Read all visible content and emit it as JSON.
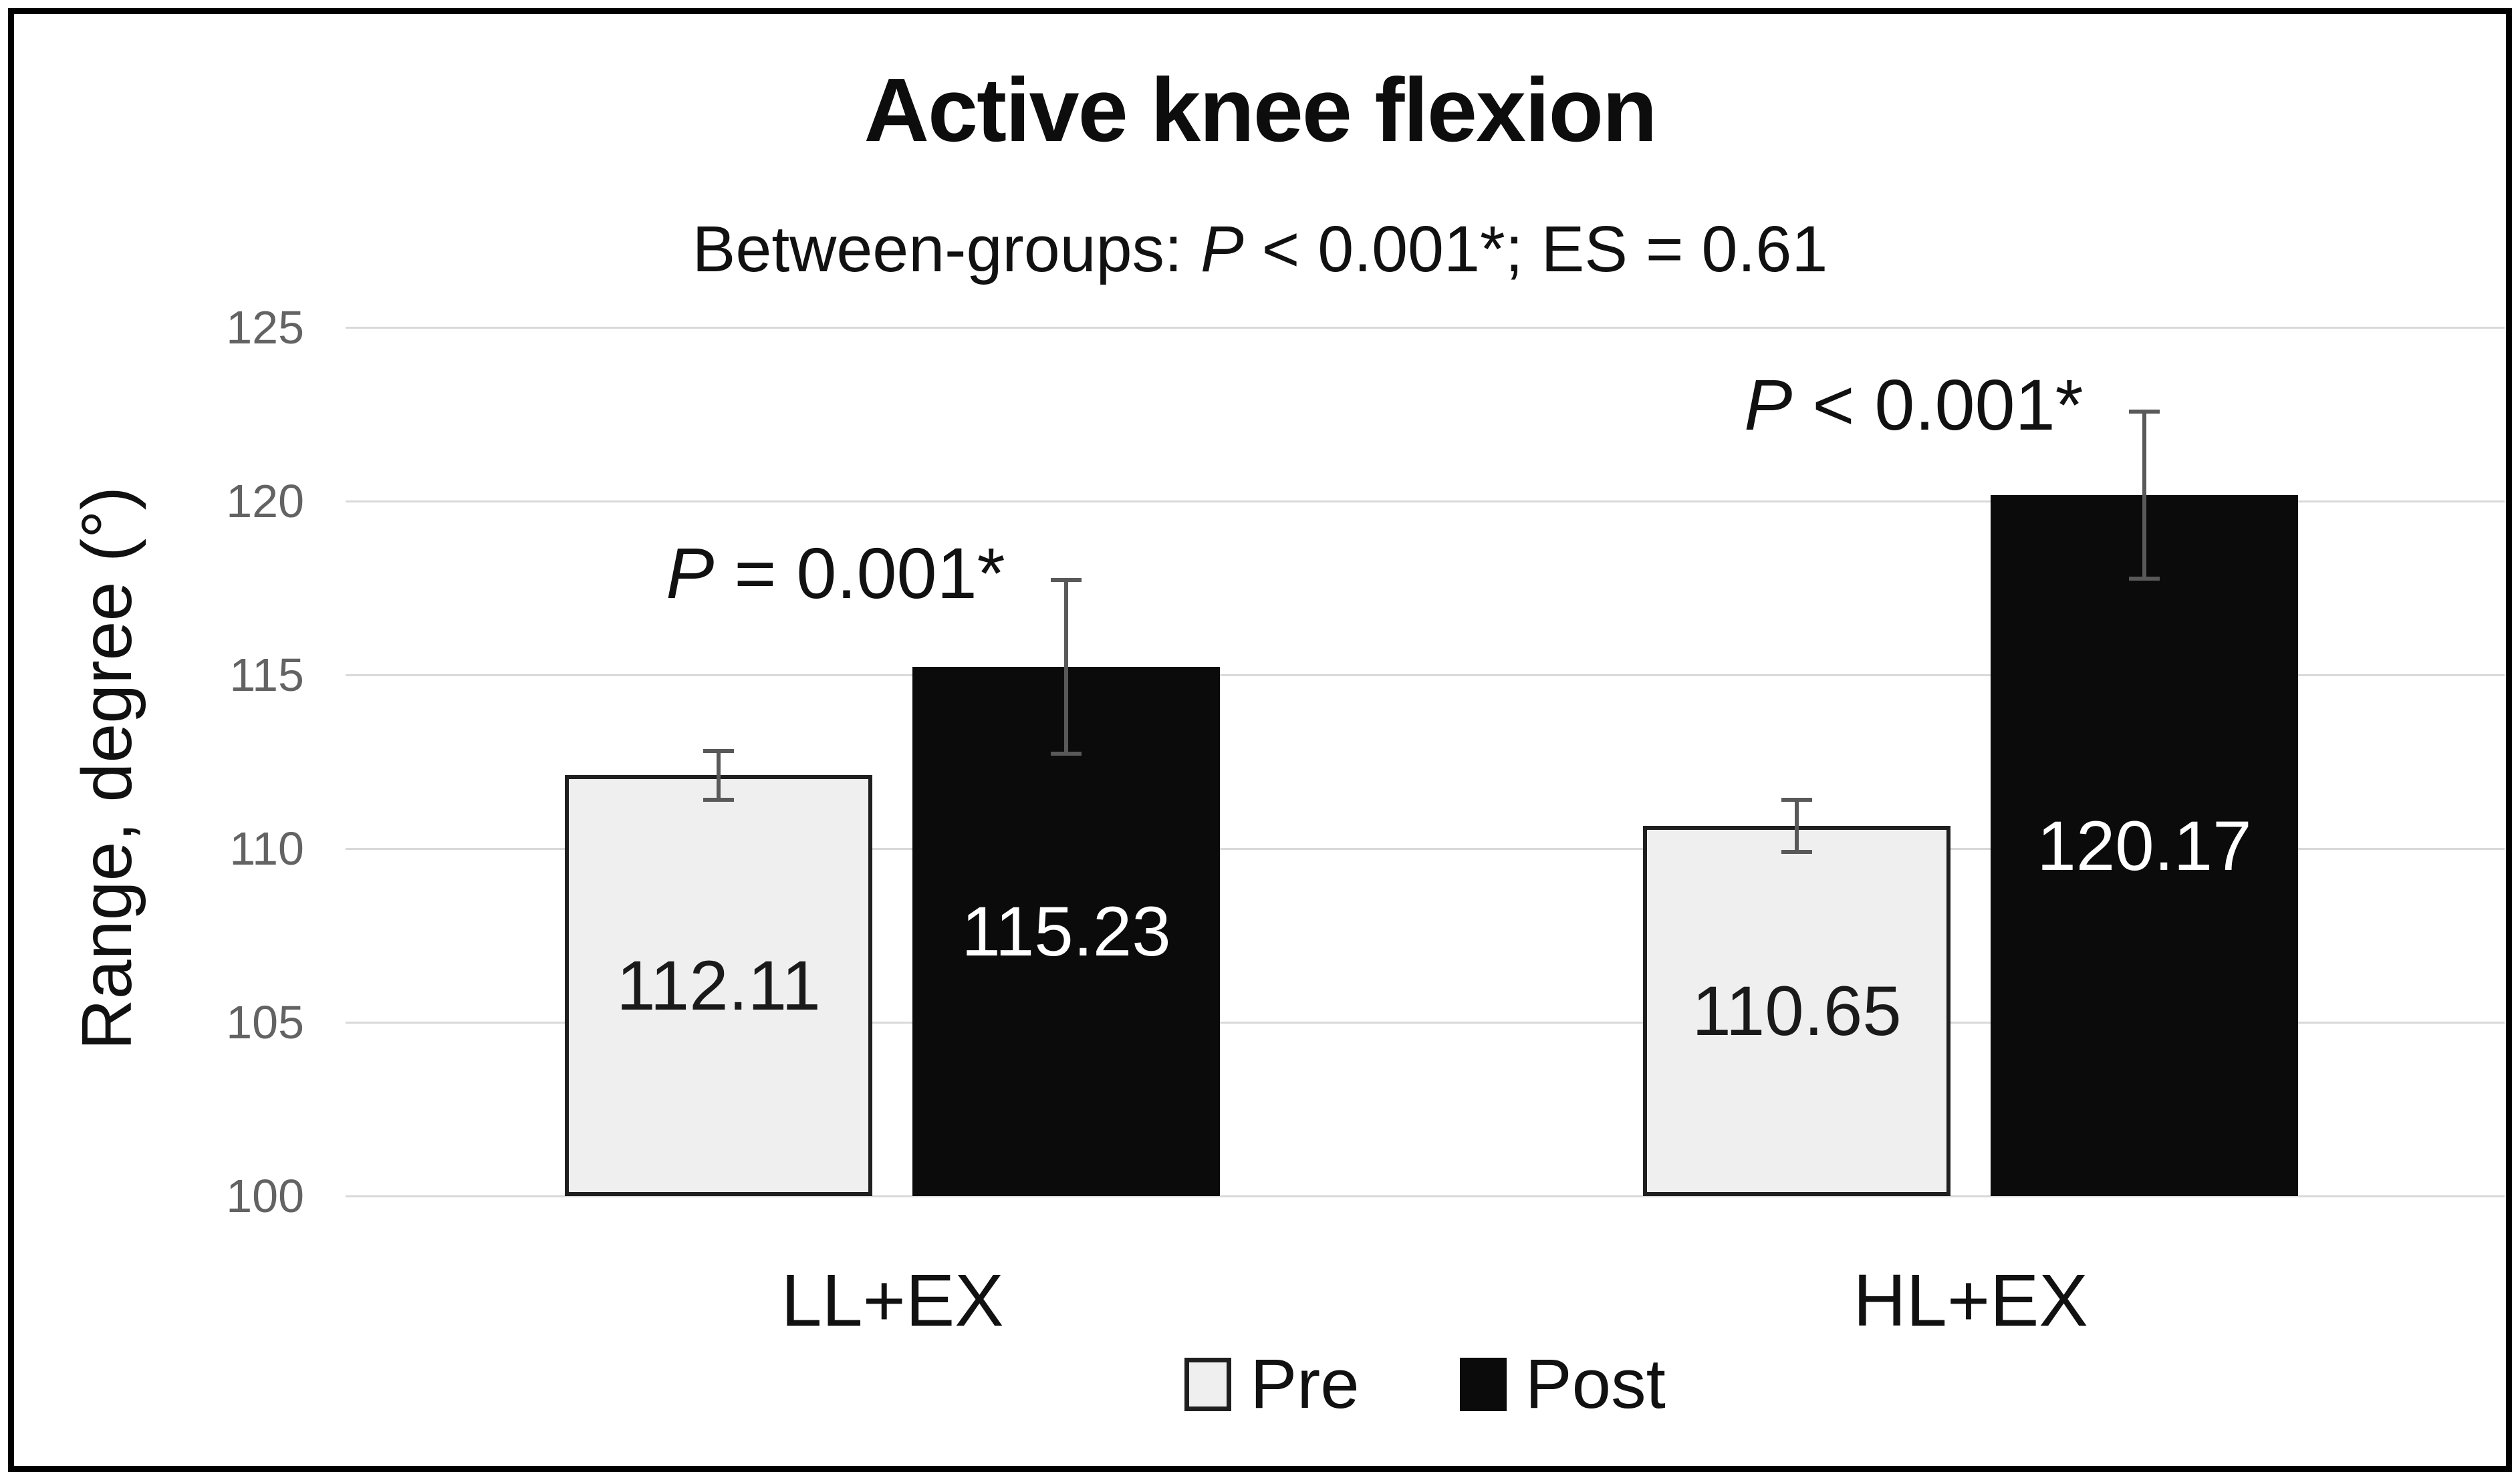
{
  "title": "Active knee flexion",
  "subtitle": {
    "prefix": "Between-groups: ",
    "p": "P",
    "rest": " < 0.001*; ES = 0.61"
  },
  "y_axis": {
    "label": "Range, degree (°)"
  },
  "chart_data": {
    "type": "bar",
    "title": "Active knee flexion",
    "subtitle": "Between-groups: P < 0.001*; ES = 0.61",
    "categories": [
      "LL+EX",
      "HL+EX"
    ],
    "series": [
      {
        "name": "Pre",
        "values": [
          112.11,
          110.65
        ],
        "errors": [
          0.7,
          0.75
        ],
        "color": "#efefef"
      },
      {
        "name": "Post",
        "values": [
          115.23,
          120.17
        ],
        "errors": [
          2.5,
          2.4
        ],
        "color": "#0b0b0b"
      }
    ],
    "annotations": [
      {
        "group": "LL+EX",
        "p": "P",
        "rest": " = 0.001*"
      },
      {
        "group": "HL+EX",
        "p": "P",
        "rest": " < 0.001*"
      }
    ],
    "xlabel": "",
    "ylabel": "Range, degree (°)",
    "ylim": [
      100,
      125
    ],
    "ytick_step": 5,
    "grid": true,
    "legend_position": "bottom"
  },
  "colors": {
    "pre_fill": "#efefef",
    "pre_border": "#1f1f1f",
    "post_fill": "#0b0b0b",
    "gridline": "#d9d9d9",
    "error_bar": "#595959",
    "tick_text": "#636363",
    "frame_border": "#000000",
    "value_label_on_pre": "#1a1a1a",
    "value_label_on_post": "#ffffff"
  }
}
